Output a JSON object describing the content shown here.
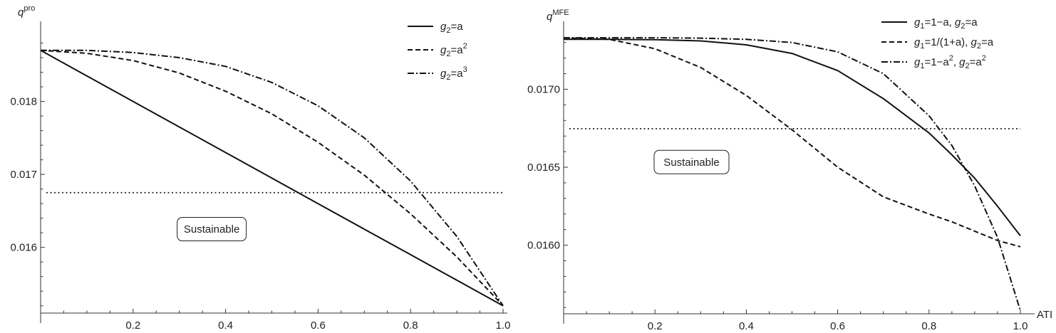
{
  "chart_data": [
    {
      "type": "line",
      "title": "",
      "ylabel": {
        "base": "q",
        "sup": "pro"
      },
      "xlabel": "",
      "xlim": [
        0,
        1.0
      ],
      "ylim": [
        0.0151,
        0.019
      ],
      "xticks": [
        {
          "value": 0.2,
          "label": "0.2"
        },
        {
          "value": 0.4,
          "label": "0.4"
        },
        {
          "value": 0.6,
          "label": "0.6"
        },
        {
          "value": 0.8,
          "label": "0.8"
        },
        {
          "value": 1.0,
          "label": "1.0"
        }
      ],
      "yticks": [
        {
          "value": 0.016,
          "label": "0.016"
        },
        {
          "value": 0.017,
          "label": "0.017"
        },
        {
          "value": 0.018,
          "label": "0.018"
        }
      ],
      "grid": false,
      "legend_position": "top-right",
      "x": [
        0,
        0.1,
        0.2,
        0.3,
        0.4,
        0.5,
        0.6,
        0.7,
        0.8,
        0.9,
        1.0
      ],
      "series": [
        {
          "name": "g2=a",
          "legend": [
            {
              "t": "g",
              "it": true
            },
            {
              "t": "2",
              "sub": true
            },
            {
              "t": "=a"
            }
          ],
          "dash": "solid",
          "values": [
            0.0187,
            0.01835,
            0.018,
            0.01765,
            0.0173,
            0.01695,
            0.0166,
            0.01625,
            0.0159,
            0.01555,
            0.0152
          ]
        },
        {
          "name": "g2=a^2",
          "legend": [
            {
              "t": "g",
              "it": true
            },
            {
              "t": "2",
              "sub": true
            },
            {
              "t": "=a"
            },
            {
              "t": "2",
              "sup": true
            }
          ],
          "dash": "dashed",
          "values": [
            0.0187,
            0.01866,
            0.01856,
            0.01839,
            0.01814,
            0.01783,
            0.01744,
            0.01699,
            0.01646,
            0.01587,
            0.0152
          ]
        },
        {
          "name": "g2=a^3",
          "legend": [
            {
              "t": "g",
              "it": true
            },
            {
              "t": "2",
              "sub": true
            },
            {
              "t": "=a"
            },
            {
              "t": "3",
              "sup": true
            }
          ],
          "dash": "dashdot",
          "values": [
            0.0187,
            0.0187,
            0.01867,
            0.0186,
            0.01848,
            0.01826,
            0.01794,
            0.0175,
            0.01691,
            0.01615,
            0.0152
          ]
        }
      ],
      "reference_line": {
        "y": 0.01675,
        "style": "dotted"
      },
      "annotation": {
        "text": "Sustainable",
        "x": 0.37,
        "y": 0.01625
      }
    },
    {
      "type": "line",
      "title": "",
      "ylabel": {
        "base": "q",
        "sup": "MFE"
      },
      "xlabel": "ATI",
      "xlim": [
        0,
        1.0
      ],
      "ylim": [
        0.01556,
        0.01739
      ],
      "xticks": [
        {
          "value": 0.2,
          "label": "0.2"
        },
        {
          "value": 0.4,
          "label": "0.4"
        },
        {
          "value": 0.6,
          "label": "0.6"
        },
        {
          "value": 0.8,
          "label": "0.8"
        },
        {
          "value": 1.0,
          "label": "1.0"
        }
      ],
      "yticks": [
        {
          "value": 0.016,
          "label": "0.0160"
        },
        {
          "value": 0.0165,
          "label": "0.0165"
        },
        {
          "value": 0.017,
          "label": "0.0170"
        }
      ],
      "grid": false,
      "legend_position": "top-right",
      "x": [
        0,
        0.1,
        0.2,
        0.3,
        0.4,
        0.5,
        0.6,
        0.7,
        0.8,
        0.85,
        0.9,
        0.95,
        1.0
      ],
      "series": [
        {
          "name": "g1=1-a, g2=a",
          "legend": [
            {
              "t": "g",
              "it": true
            },
            {
              "t": "1",
              "sub": true
            },
            {
              "t": "=1−a, "
            },
            {
              "t": "g",
              "it": true
            },
            {
              "t": "2",
              "sub": true
            },
            {
              "t": "=a"
            }
          ],
          "dash": "solid",
          "values": [
            0.01732,
            0.01732,
            0.017318,
            0.01731,
            0.017285,
            0.01723,
            0.01712,
            0.01694,
            0.01672,
            0.01658,
            0.01643,
            0.01625,
            0.01606
          ]
        },
        {
          "name": "g1=1/(1+a), g2=a",
          "legend": [
            {
              "t": "g",
              "it": true
            },
            {
              "t": "1",
              "sub": true
            },
            {
              "t": "=1/(1+a), "
            },
            {
              "t": "g",
              "it": true
            },
            {
              "t": "2",
              "sub": true
            },
            {
              "t": "=a"
            }
          ],
          "dash": "dashed",
          "values": [
            0.01733,
            0.01732,
            0.01726,
            0.01714,
            0.01696,
            0.01674,
            0.0165,
            0.01631,
            0.0162,
            0.01615,
            0.01609,
            0.01603,
            0.01599
          ]
        },
        {
          "name": "g1=1-a^2, g2=a^2",
          "legend": [
            {
              "t": "g",
              "it": true
            },
            {
              "t": "1",
              "sub": true
            },
            {
              "t": "=1−a"
            },
            {
              "t": "2",
              "sup": true
            },
            {
              "t": ", "
            },
            {
              "t": "g",
              "it": true
            },
            {
              "t": "2",
              "sub": true
            },
            {
              "t": "=a"
            },
            {
              "t": "2",
              "sup": true
            }
          ],
          "dash": "dashdot",
          "values": [
            0.01733,
            0.01733,
            0.01733,
            0.017328,
            0.01732,
            0.0173,
            0.01724,
            0.0171,
            0.01683,
            0.01664,
            0.01638,
            0.01605,
            0.01558
          ]
        }
      ],
      "reference_line": {
        "y": 0.016747,
        "style": "dotted"
      },
      "annotation": {
        "text": "Sustainable",
        "x": 0.28,
        "y": 0.016533
      }
    }
  ]
}
